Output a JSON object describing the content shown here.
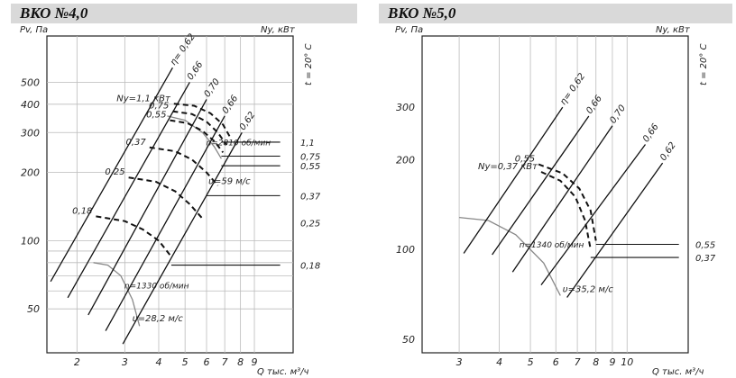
{
  "chart_data": [
    {
      "type": "line",
      "title": "ВКО №4,0",
      "ylabel": "Pv, Па",
      "y2label": "Ny, кВт",
      "xlabel": "Q тыс. м³/ч",
      "temp_label": "t = 20° C",
      "x_scale": "log",
      "y_scale": "log",
      "xlim": [
        1.55,
        12.5
      ],
      "ylim": [
        32,
        800
      ],
      "x_ticks": [
        2,
        3,
        4,
        5,
        6,
        7,
        8,
        9
      ],
      "y_ticks": [
        50,
        100,
        200,
        300,
        400,
        500
      ],
      "y_tick_labels": [
        "50",
        "100",
        "200",
        "300",
        "400",
        "500"
      ],
      "grid_y": [
        50,
        60,
        70,
        80,
        90,
        100,
        200,
        300,
        400,
        500
      ],
      "efficiency_lines": [
        {
          "eta": "η= 0,62",
          "points": [
            [
              1.6,
              66
            ],
            [
              4.5,
              580
            ]
          ]
        },
        {
          "eta": "0,66",
          "points": [
            [
              1.85,
              56
            ],
            [
              5.2,
              500
            ]
          ]
        },
        {
          "eta": "0,70",
          "points": [
            [
              2.2,
              47
            ],
            [
              6.0,
              420
            ]
          ]
        },
        {
          "eta": "0,66",
          "points": [
            [
              2.55,
              40
            ],
            [
              7.0,
              355
            ]
          ]
        },
        {
          "eta": "0,62",
          "points": [
            [
              2.95,
              35
            ],
            [
              8.1,
              300
            ]
          ]
        }
      ],
      "power_curves": [
        {
          "label": "0,18",
          "points": [
            [
              2.35,
              128
            ],
            [
              3.0,
              122
            ],
            [
              3.5,
              112
            ],
            [
              4.0,
              100
            ],
            [
              4.45,
              85
            ]
          ]
        },
        {
          "label": "0,25",
          "points": [
            [
              3.1,
              190
            ],
            [
              3.9,
              182
            ],
            [
              4.6,
              165
            ],
            [
              5.2,
              145
            ],
            [
              5.8,
              125
            ]
          ]
        },
        {
          "label": "0,37",
          "points": [
            [
              3.7,
              258
            ],
            [
              4.6,
              248
            ],
            [
              5.3,
              228
            ],
            [
              6.0,
              200
            ],
            [
              6.6,
              175
            ]
          ]
        },
        {
          "label": "0,55",
          "points": [
            [
              4.4,
              340
            ],
            [
              5.1,
              330
            ],
            [
              5.8,
              305
            ],
            [
              6.4,
              275
            ],
            [
              6.9,
              245
            ]
          ]
        },
        {
          "label": "0,75",
          "points": [
            [
              4.5,
              372
            ],
            [
              5.3,
              362
            ],
            [
              6.0,
              335
            ],
            [
              6.6,
              300
            ],
            [
              7.1,
              265
            ]
          ]
        },
        {
          "label": "Ny=1,1 кВт",
          "points": [
            [
              4.55,
              402
            ],
            [
              5.4,
              394
            ],
            [
              6.2,
              365
            ],
            [
              6.9,
              325
            ],
            [
              7.3,
              288
            ]
          ]
        }
      ],
      "fan_curves": [
        {
          "label": "n=2810 об/мин",
          "points": [
            [
              4.3,
              355
            ],
            [
              5.0,
              340
            ],
            [
              5.8,
              300
            ],
            [
              6.4,
              260
            ],
            [
              6.8,
              230
            ]
          ]
        },
        {
          "label": "n=1330 об/мин",
          "points": [
            [
              2.3,
              80
            ],
            [
              2.6,
              78
            ],
            [
              2.9,
              70
            ],
            [
              3.2,
              55
            ],
            [
              3.4,
              42
            ]
          ]
        }
      ],
      "power_scale": [
        {
          "label": "1,1",
          "y": 272
        },
        {
          "label": "0,75",
          "y": 236
        },
        {
          "label": "0,55",
          "y": 214
        },
        {
          "label": "0,37",
          "y": 158
        },
        {
          "label": "0,25",
          "y": 120
        },
        {
          "label": "0,18",
          "y": 78
        }
      ],
      "power_leaders": [
        {
          "from": [
            6.8,
            272
          ],
          "to": [
            11.2,
            272
          ]
        },
        {
          "from": [
            6.8,
            236
          ],
          "to": [
            11.2,
            236
          ]
        },
        {
          "from": [
            6.8,
            214
          ],
          "to": [
            11.2,
            214
          ]
        },
        {
          "from": [
            6.0,
            158
          ],
          "to": [
            11.2,
            158
          ]
        },
        {
          "from": [
            4.45,
            78
          ],
          "to": [
            11.2,
            78
          ]
        }
      ],
      "velocity_labels": [
        {
          "label": "υ=59 м/с",
          "at": [
            6.1,
            178
          ]
        },
        {
          "label": "υ=28,2 м/с",
          "at": [
            3.2,
            44
          ]
        }
      ]
    },
    {
      "type": "line",
      "title": "ВКО №5,0",
      "ylabel": "Pv, Па",
      "y2label": "Ny, кВт",
      "xlabel": "Q тыс. м³/ч",
      "temp_label": "t = 20° C",
      "x_scale": "log",
      "y_scale": "log",
      "xlim": [
        2.3,
        15.5
      ],
      "ylim": [
        45,
        520
      ],
      "x_ticks": [
        3,
        4,
        5,
        6,
        7,
        8,
        9,
        10
      ],
      "y_ticks": [
        50,
        100,
        200,
        300
      ],
      "y_tick_labels": [
        "50",
        "100",
        "200",
        "300"
      ],
      "grid_y": [],
      "efficiency_lines": [
        {
          "eta": "η= 0,62",
          "points": [
            [
              3.1,
              97
            ],
            [
              6.3,
              300
            ]
          ]
        },
        {
          "eta": "0,66",
          "points": [
            [
              3.8,
              96
            ],
            [
              7.6,
              280
            ]
          ]
        },
        {
          "eta": "0,70",
          "points": [
            [
              4.4,
              84
            ],
            [
              9.0,
              260
            ]
          ]
        },
        {
          "eta": "0,66",
          "points": [
            [
              5.4,
              76
            ],
            [
              11.4,
              225
            ]
          ]
        },
        {
          "eta": "0,62",
          "points": [
            [
              6.5,
              69
            ],
            [
              12.9,
              195
            ]
          ]
        }
      ],
      "power_curves": [
        {
          "label": "Ny=0,37 кВт",
          "points": [
            [
              5.4,
              182
            ],
            [
              6.2,
              170
            ],
            [
              6.9,
              150
            ],
            [
              7.4,
              125
            ],
            [
              7.7,
              100
            ]
          ]
        },
        {
          "label": "0,55",
          "points": [
            [
              5.3,
              193
            ],
            [
              6.3,
              180
            ],
            [
              7.1,
              160
            ],
            [
              7.7,
              135
            ],
            [
              8.0,
              107
            ]
          ]
        }
      ],
      "fan_curves": [
        {
          "label": "n=1340 об/мин",
          "points": [
            [
              3.0,
              128
            ],
            [
              3.7,
              125
            ],
            [
              4.5,
              112
            ],
            [
              5.5,
              90
            ],
            [
              6.2,
              70
            ]
          ]
        }
      ],
      "power_scale": [
        {
          "label": "0,55",
          "y": 104
        },
        {
          "label": "0,37",
          "y": 94
        }
      ],
      "power_leaders": [
        {
          "from": [
            8.0,
            104
          ],
          "to": [
            14.5,
            104
          ]
        },
        {
          "from": [
            7.7,
            94
          ],
          "to": [
            14.5,
            94
          ]
        }
      ],
      "velocity_labels": [
        {
          "label": "υ=35,2 м/с",
          "at": [
            6.3,
            72
          ]
        }
      ]
    }
  ]
}
